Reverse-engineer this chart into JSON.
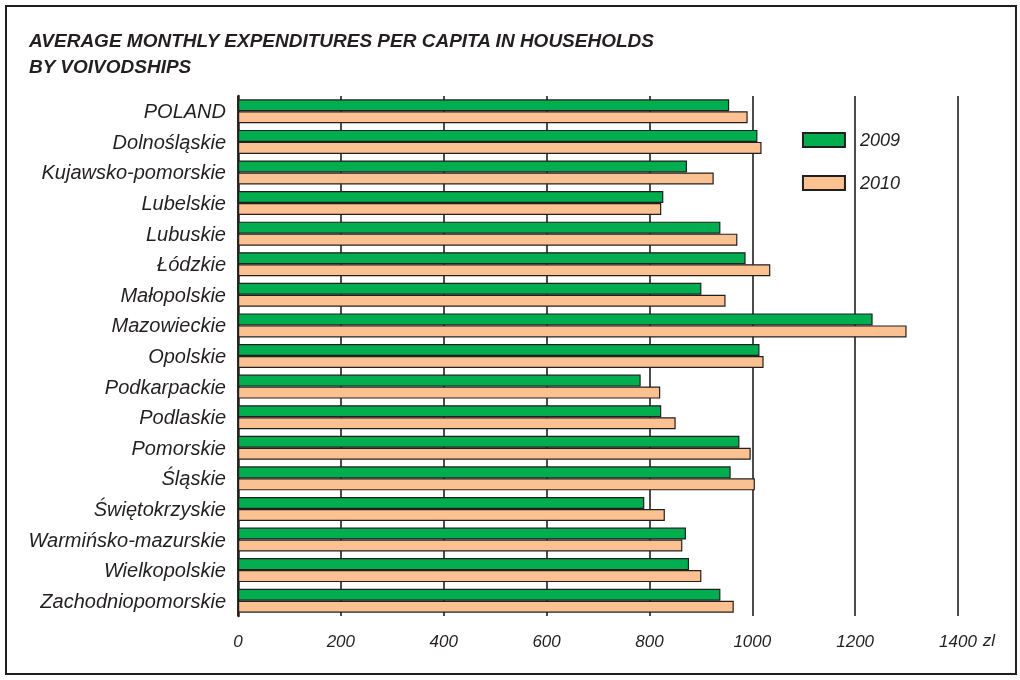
{
  "chart_data": {
    "type": "bar",
    "orientation": "horizontal",
    "title": "AVERAGE MONTHLY EXPENDITURES PER CAPITA IN HOUSEHOLDS BY VOIVODSHIPS",
    "xlabel": "zl",
    "categories": [
      "POLAND",
      "Dolnośląskie",
      "Kujawsko-pomorskie",
      "Lubelskie",
      "Lubuskie",
      "Łódzkie",
      "Małopolskie",
      "Mazowieckie",
      "Opolskie",
      "Podkarpackie",
      "Podlaskie",
      "Pomorskie",
      "Śląskie",
      "Świętokrzyskie",
      "Warmińsko-mazurskie",
      "Wielkopolskie",
      "Zachodniopomorskie"
    ],
    "series": [
      {
        "name": "2009",
        "color": "#00ae4f",
        "values": [
          955,
          1010,
          873,
          827,
          938,
          987,
          901,
          1234,
          1014,
          783,
          823,
          975,
          958,
          790,
          871,
          877,
          938
        ]
      },
      {
        "name": "2010",
        "color": "#fcc190",
        "values": [
          991,
          1018,
          925,
          823,
          971,
          1035,
          948,
          1300,
          1022,
          821,
          851,
          997,
          1005,
          830,
          864,
          901,
          964
        ]
      }
    ],
    "xlim": [
      0,
      1400
    ],
    "xticks": [
      0,
      200,
      400,
      600,
      800,
      1000,
      1200,
      1400
    ],
    "grid": "x",
    "legend": "top right"
  }
}
